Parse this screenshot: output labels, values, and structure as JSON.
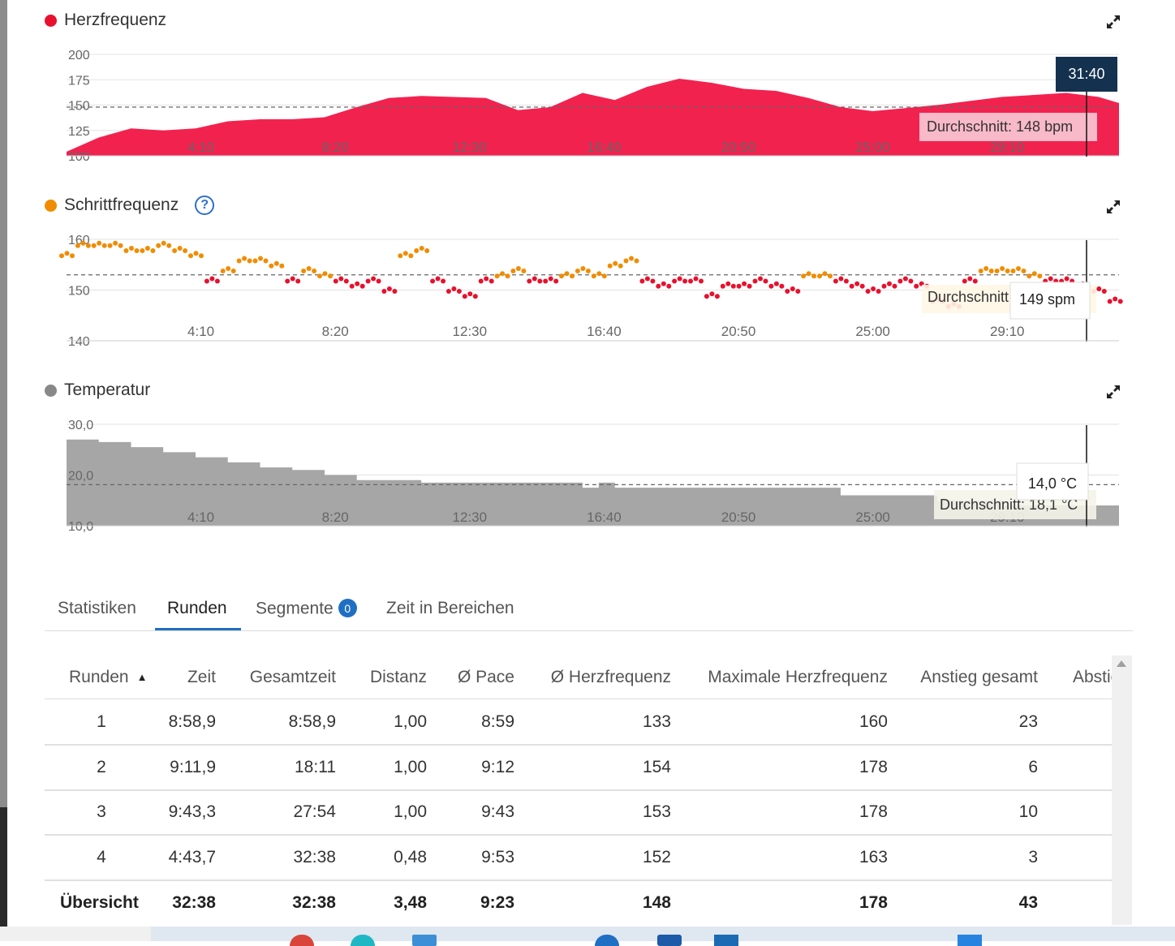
{
  "charts": {
    "heart_rate": {
      "title": "Herzfrequenz",
      "dot_color": "#e8112d",
      "fill_color": "#f2224f",
      "y_ticks": [
        "200",
        "175",
        "150",
        "125",
        "100"
      ],
      "x_ticks": [
        "4:10",
        "8:20",
        "12:30",
        "16:40",
        "20:50",
        "25:00",
        "29:10"
      ],
      "average_label": "Durchschnitt: 148 bpm",
      "cursor_time": "31:40",
      "expand_icon": "expand-arrows-icon"
    },
    "cadence": {
      "title": "Schrittfrequenz",
      "dot_color": "#f08c00",
      "help_icon": "?",
      "y_ticks": [
        "160",
        "150",
        "140"
      ],
      "x_ticks": [
        "4:10",
        "8:20",
        "12:30",
        "16:40",
        "20:50",
        "25:00",
        "29:10"
      ],
      "average_label": "Durchschnitt: 153 spm",
      "tooltip_value": "149 spm",
      "above_color": "#f08c00",
      "below_color": "#e8112d",
      "expand_icon": "expand-arrows-icon"
    },
    "temperature": {
      "title": "Temperatur",
      "dot_color": "#888888",
      "fill_color": "#a6a6a6",
      "y_ticks": [
        "30,0",
        "20,0",
        "10,0"
      ],
      "x_ticks": [
        "4:10",
        "8:20",
        "12:30",
        "16:40",
        "20:50",
        "25:00",
        "29:10"
      ],
      "average_label": "Durchschnitt: 18,1 °C",
      "tooltip_value": "14,0 °C",
      "expand_icon": "expand-arrows-icon"
    }
  },
  "chart_data": [
    {
      "type": "area",
      "title": "Herzfrequenz",
      "xlabel": "",
      "ylabel": "",
      "x_unit": "min:s",
      "ylim": [
        100,
        200
      ],
      "average": 148,
      "x": [
        "0:00",
        "1:00",
        "2:00",
        "3:00",
        "4:00",
        "5:00",
        "6:00",
        "7:00",
        "8:00",
        "9:00",
        "10:00",
        "11:00",
        "12:00",
        "13:00",
        "14:00",
        "15:00",
        "16:00",
        "17:00",
        "18:00",
        "19:00",
        "20:00",
        "21:00",
        "22:00",
        "23:00",
        "24:00",
        "25:00",
        "26:00",
        "27:00",
        "28:00",
        "29:00",
        "30:00",
        "31:00",
        "32:00",
        "32:38"
      ],
      "values": [
        104,
        118,
        127,
        125,
        127,
        134,
        136,
        136,
        138,
        148,
        157,
        159,
        158,
        157,
        145,
        148,
        162,
        155,
        168,
        176,
        172,
        166,
        164,
        157,
        148,
        144,
        147,
        150,
        154,
        158,
        160,
        162,
        158,
        152
      ]
    },
    {
      "type": "scatter",
      "title": "Schrittfrequenz",
      "xlabel": "",
      "ylabel": "",
      "x_unit": "min:s",
      "ylim": [
        140,
        160
      ],
      "average": 153,
      "x": [
        "0:00",
        "0:30",
        "1:00",
        "1:30",
        "2:00",
        "2:30",
        "3:00",
        "3:30",
        "4:00",
        "4:30",
        "5:00",
        "5:30",
        "6:00",
        "6:30",
        "7:00",
        "7:30",
        "8:00",
        "8:30",
        "9:00",
        "9:30",
        "10:00",
        "10:30",
        "11:00",
        "11:30",
        "12:00",
        "12:30",
        "13:00",
        "13:30",
        "14:00",
        "14:30",
        "15:00",
        "15:30",
        "16:00",
        "16:30",
        "17:00",
        "17:30",
        "18:00",
        "18:30",
        "19:00",
        "19:30",
        "20:00",
        "20:30",
        "21:00",
        "21:30",
        "22:00",
        "22:30",
        "23:00",
        "23:30",
        "24:00",
        "24:30",
        "25:00",
        "25:30",
        "26:00",
        "26:30",
        "27:00",
        "27:30",
        "28:00",
        "28:30",
        "29:00",
        "29:30",
        "30:00",
        "30:30",
        "31:00",
        "31:30",
        "32:00",
        "32:30"
      ],
      "values": [
        157,
        159,
        159,
        159,
        158,
        158,
        159,
        158,
        157,
        152,
        154,
        156,
        156,
        155,
        152,
        154,
        153,
        152,
        151,
        152,
        150,
        157,
        158,
        152,
        150,
        149,
        152,
        153,
        154,
        152,
        152,
        153,
        154,
        153,
        155,
        156,
        152,
        151,
        152,
        152,
        149,
        151,
        151,
        152,
        151,
        150,
        153,
        153,
        152,
        151,
        150,
        151,
        152,
        151,
        148,
        147,
        152,
        154,
        154,
        154,
        153,
        152,
        152,
        151,
        150,
        148
      ]
    },
    {
      "type": "area",
      "title": "Temperatur",
      "xlabel": "",
      "ylabel": "",
      "x_unit": "min:s",
      "ylim": [
        10,
        30
      ],
      "average": 18.1,
      "x": [
        "0:00",
        "1:00",
        "2:00",
        "3:00",
        "4:00",
        "5:00",
        "6:00",
        "7:00",
        "8:00",
        "9:00",
        "10:00",
        "11:00",
        "12:00",
        "13:00",
        "14:00",
        "15:00",
        "16:00",
        "16:30",
        "17:00",
        "18:00",
        "19:00",
        "20:00",
        "21:00",
        "22:00",
        "23:00",
        "24:00",
        "25:00",
        "26:00",
        "27:00",
        "28:00",
        "29:00",
        "30:00",
        "31:00",
        "32:00",
        "32:38"
      ],
      "values": [
        27,
        26.5,
        25.5,
        24.5,
        23.5,
        22.5,
        21.5,
        21,
        20,
        19,
        19,
        18.5,
        18.5,
        18.5,
        18.5,
        18.5,
        17.5,
        18.5,
        17.5,
        17.5,
        17.5,
        17.5,
        17.5,
        17.5,
        17.5,
        16,
        16,
        16,
        15,
        15,
        14,
        14,
        14,
        14,
        14
      ]
    }
  ],
  "tabs": {
    "items": [
      {
        "label": "Statistiken"
      },
      {
        "label": "Runden"
      },
      {
        "label": "Segmente",
        "badge": "0"
      },
      {
        "label": "Zeit in Bereichen"
      }
    ]
  },
  "table": {
    "headers": [
      "Runden",
      "Zeit",
      "Gesamtzeit",
      "Distanz",
      "Ø Pace",
      "Ø Herzfrequenz",
      "Maximale Herzfrequenz",
      "Anstieg gesamt",
      "Abstie"
    ],
    "sort_indicator": "▲",
    "rows": [
      [
        "1",
        "8:58,9",
        "8:58,9",
        "1,00",
        "8:59",
        "133",
        "160",
        "23"
      ],
      [
        "2",
        "9:11,9",
        "18:11",
        "1,00",
        "9:12",
        "154",
        "178",
        "6"
      ],
      [
        "3",
        "9:43,3",
        "27:54",
        "1,00",
        "9:43",
        "153",
        "178",
        "10"
      ],
      [
        "4",
        "4:43,7",
        "32:38",
        "0,48",
        "9:53",
        "152",
        "163",
        "3"
      ]
    ],
    "total": [
      "Übersicht",
      "32:38",
      "32:38",
      "3,48",
      "9:23",
      "148",
      "178",
      "43"
    ]
  }
}
